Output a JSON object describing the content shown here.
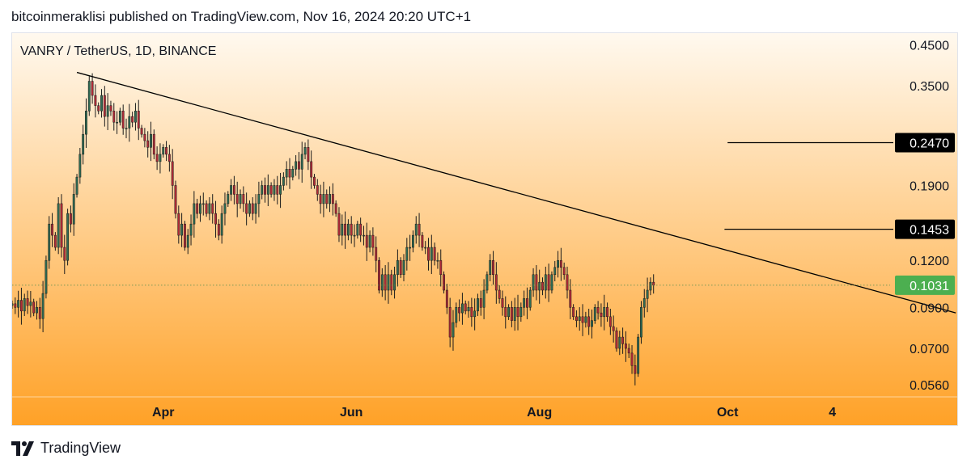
{
  "header": {
    "publisher_line": "bitcoinmeraklisi published on TradingView.com, Nov 16, 2024 20:20 UTC+1"
  },
  "footer": {
    "brand": "TradingView",
    "logo_icon": "tradingview-logo-icon"
  },
  "colors": {
    "up": "#2f6b53",
    "down": "#b02a37",
    "wick": "#1c1c1c",
    "bg_top": "#fff9ef",
    "bg_bottom": "#ffa126",
    "last_price_bg": "#4caf50",
    "level_tag_bg": "#000000",
    "text": "#131722"
  },
  "chart_data": {
    "type": "candlestick",
    "title": "VANRY / TetherUS, 1D, BINANCE",
    "symbol": "VANRY / TetherUS",
    "interval": "1D",
    "exchange": "BINANCE",
    "y_scale": "log",
    "ylim": [
      0.052,
      0.46
    ],
    "y_ticks": [
      "0.4500",
      "0.3500",
      "0.1900",
      "0.1200",
      "0.0900",
      "0.0700",
      "0.0560"
    ],
    "x_ticks": [
      {
        "label": "Apr",
        "date": "2024-04-01"
      },
      {
        "label": "Jun",
        "date": "2024-06-01"
      },
      {
        "label": "Aug",
        "date": "2024-08-01"
      },
      {
        "label": "Oct",
        "date": "2024-10-01"
      },
      {
        "label": "4",
        "date": "2024-11-04"
      }
    ],
    "xlim": [
      "2024-02-12",
      "2024-12-15"
    ],
    "last_price": {
      "label": "0.1031",
      "value": 0.1031
    },
    "horizontal_levels": [
      {
        "label": "0.2470",
        "value": 0.247,
        "from": "2024-10-01"
      },
      {
        "label": "0.1453",
        "value": 0.1453,
        "from": "2024-09-30"
      }
    ],
    "trendline": {
      "start": {
        "date": "2024-03-04",
        "value": 0.38
      },
      "end": {
        "date": "2024-12-14",
        "value": 0.087
      }
    },
    "candles": {
      "start_date": "2024-02-12",
      "closes": [
        0.092,
        0.09,
        0.094,
        0.088,
        0.095,
        0.091,
        0.093,
        0.087,
        0.09,
        0.084,
        0.098,
        0.12,
        0.15,
        0.14,
        0.13,
        0.17,
        0.13,
        0.12,
        0.16,
        0.15,
        0.18,
        0.2,
        0.23,
        0.26,
        0.3,
        0.36,
        0.33,
        0.31,
        0.3,
        0.33,
        0.29,
        0.31,
        0.3,
        0.28,
        0.28,
        0.3,
        0.27,
        0.27,
        0.29,
        0.28,
        0.3,
        0.27,
        0.26,
        0.25,
        0.24,
        0.26,
        0.23,
        0.22,
        0.23,
        0.24,
        0.23,
        0.22,
        0.19,
        0.16,
        0.14,
        0.15,
        0.13,
        0.14,
        0.15,
        0.17,
        0.16,
        0.17,
        0.17,
        0.16,
        0.17,
        0.16,
        0.15,
        0.14,
        0.16,
        0.17,
        0.18,
        0.19,
        0.18,
        0.17,
        0.18,
        0.17,
        0.16,
        0.17,
        0.16,
        0.17,
        0.18,
        0.19,
        0.18,
        0.19,
        0.18,
        0.19,
        0.18,
        0.19,
        0.2,
        0.21,
        0.2,
        0.21,
        0.22,
        0.21,
        0.23,
        0.24,
        0.22,
        0.2,
        0.19,
        0.18,
        0.17,
        0.18,
        0.17,
        0.18,
        0.17,
        0.16,
        0.14,
        0.15,
        0.14,
        0.15,
        0.14,
        0.14,
        0.15,
        0.14,
        0.14,
        0.13,
        0.14,
        0.13,
        0.12,
        0.1,
        0.11,
        0.1,
        0.11,
        0.1,
        0.11,
        0.12,
        0.11,
        0.12,
        0.13,
        0.13,
        0.14,
        0.15,
        0.14,
        0.13,
        0.13,
        0.12,
        0.13,
        0.12,
        0.12,
        0.11,
        0.1,
        0.09,
        0.075,
        0.082,
        0.09,
        0.087,
        0.092,
        0.088,
        0.09,
        0.085,
        0.088,
        0.095,
        0.09,
        0.1,
        0.11,
        0.12,
        0.11,
        0.1,
        0.095,
        0.09,
        0.085,
        0.09,
        0.083,
        0.09,
        0.085,
        0.09,
        0.095,
        0.09,
        0.1,
        0.11,
        0.1,
        0.105,
        0.1,
        0.11,
        0.1,
        0.11,
        0.115,
        0.12,
        0.115,
        0.11,
        0.1,
        0.09,
        0.085,
        0.083,
        0.085,
        0.082,
        0.085,
        0.08,
        0.083,
        0.09,
        0.087,
        0.085,
        0.09,
        0.085,
        0.08,
        0.078,
        0.07,
        0.075,
        0.072,
        0.07,
        0.068,
        0.063,
        0.06,
        0.075,
        0.09,
        0.095,
        0.1,
        0.105,
        0.1031
      ]
    }
  }
}
